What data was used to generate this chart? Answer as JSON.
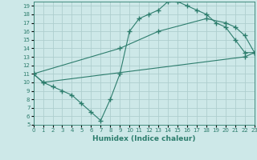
{
  "line1_x": [
    0,
    1,
    2,
    3,
    4,
    5,
    6,
    7,
    8,
    9,
    10,
    11,
    12,
    13,
    14,
    15,
    16,
    17,
    18,
    19,
    20,
    21,
    22,
    23
  ],
  "line1_y": [
    11,
    10,
    9.5,
    9,
    8.5,
    7.5,
    6.5,
    5.5,
    8,
    11,
    16,
    17.5,
    18,
    18.5,
    19.5,
    19.5,
    19,
    18.5,
    18,
    17,
    16.5,
    15,
    13.5,
    13.5
  ],
  "line2_x": [
    0,
    9,
    13,
    18,
    20,
    21,
    22,
    23
  ],
  "line2_y": [
    11,
    14,
    16,
    17.5,
    17,
    16.5,
    15.5,
    13.5
  ],
  "line3_x": [
    0,
    1,
    22,
    23
  ],
  "line3_y": [
    11,
    10,
    13,
    13.5
  ],
  "color": "#2d7d6d",
  "bg_color": "#cde8e8",
  "grid_color": "#aecece",
  "xlabel": "Humidex (Indice chaleur)",
  "xlim": [
    0,
    23
  ],
  "ylim": [
    5,
    19.5
  ],
  "yticks": [
    5,
    6,
    7,
    8,
    9,
    10,
    11,
    12,
    13,
    14,
    15,
    16,
    17,
    18,
    19
  ],
  "xticks": [
    0,
    1,
    2,
    3,
    4,
    5,
    6,
    7,
    8,
    9,
    10,
    11,
    12,
    13,
    14,
    15,
    16,
    17,
    18,
    19,
    20,
    21,
    22,
    23
  ]
}
